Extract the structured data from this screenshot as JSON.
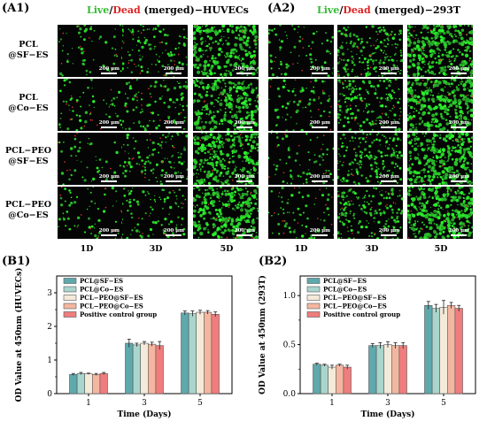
{
  "colors": {
    "live": "#3fd23f",
    "dead": "#e03030",
    "green_text": "#33bb33",
    "red_text": "#dd2222"
  },
  "panels": {
    "a1": {
      "label": "(A1)",
      "live": "Live",
      "slash": "/",
      "dead": "Dead",
      "rest": " (merged)−HUVECs"
    },
    "a2": {
      "label": "(A2)",
      "live": "Live",
      "slash": "/",
      "dead": "Dead",
      "rest": " (merged)−293T"
    },
    "b1": {
      "label": "(B1)"
    },
    "b2": {
      "label": "(B2)"
    }
  },
  "rows": [
    {
      "line1": "PCL",
      "line2": "@SF−ES"
    },
    {
      "line1": "PCL",
      "line2": "@Co−ES"
    },
    {
      "line1": "PCL−PEO",
      "line2": "@SF−ES"
    },
    {
      "line1": "PCL−PEO",
      "line2": "@Co−ES"
    }
  ],
  "columns": [
    "1D",
    "3D",
    "5D"
  ],
  "scale_text": "200 μm",
  "chart_data": [
    {
      "type": "bar",
      "x": [
        1,
        3,
        5
      ],
      "xlabel": "Time (Days)",
      "ylabel": "OD Value at 450nm (HUVECs)",
      "ylim": [
        0,
        3.5
      ],
      "yticks": [
        0,
        1,
        2,
        3
      ],
      "ytick_labels": [
        "0",
        "1",
        "2",
        "3"
      ],
      "legend_position": "top-left",
      "series": [
        {
          "name": "PCL@SF−ES",
          "color": "#5fa9ad",
          "values": [
            0.57,
            1.5,
            2.4
          ],
          "errors": [
            0.03,
            0.12,
            0.06
          ]
        },
        {
          "name": "PCL@Co−ES",
          "color": "#a9d5cc",
          "values": [
            0.6,
            1.45,
            2.38
          ],
          "errors": [
            0.03,
            0.05,
            0.08
          ]
        },
        {
          "name": "PCL−PEO@SF−ES",
          "color": "#f4ead9",
          "values": [
            0.59,
            1.5,
            2.42
          ],
          "errors": [
            0.02,
            0.05,
            0.06
          ]
        },
        {
          "name": "PCL−PEO@Co−ES",
          "color": "#f4b6a0",
          "values": [
            0.57,
            1.47,
            2.42
          ],
          "errors": [
            0.03,
            0.06,
            0.05
          ]
        },
        {
          "name": "Positive control group",
          "color": "#ef7d7d",
          "values": [
            0.6,
            1.43,
            2.36
          ],
          "errors": [
            0.03,
            0.12,
            0.07
          ]
        }
      ]
    },
    {
      "type": "bar",
      "x": [
        1,
        3,
        5
      ],
      "xlabel": "Time (Days)",
      "ylabel": "OD Value at 450nm (293T)",
      "ylim": [
        0,
        1.2
      ],
      "yticks": [
        0,
        0.5,
        1
      ],
      "ytick_labels": [
        "0.0",
        "0.5",
        "1.0"
      ],
      "legend_position": "top-left",
      "series": [
        {
          "name": "PCL@SF−ES",
          "color": "#5fa9ad",
          "values": [
            0.3,
            0.49,
            0.9
          ],
          "errors": [
            0.01,
            0.02,
            0.04
          ]
        },
        {
          "name": "PCL@Co−ES",
          "color": "#a9d5cc",
          "values": [
            0.29,
            0.49,
            0.87
          ],
          "errors": [
            0.01,
            0.03,
            0.04
          ]
        },
        {
          "name": "PCL−PEO@SF−ES",
          "color": "#f4ead9",
          "values": [
            0.27,
            0.5,
            0.88
          ],
          "errors": [
            0.02,
            0.03,
            0.07
          ]
        },
        {
          "name": "PCL−PEO@Co−ES",
          "color": "#f4b6a0",
          "values": [
            0.29,
            0.49,
            0.9
          ],
          "errors": [
            0.01,
            0.03,
            0.03
          ]
        },
        {
          "name": "Positive control group",
          "color": "#ef7d7d",
          "values": [
            0.27,
            0.49,
            0.87
          ],
          "errors": [
            0.02,
            0.03,
            0.03
          ]
        }
      ]
    }
  ]
}
